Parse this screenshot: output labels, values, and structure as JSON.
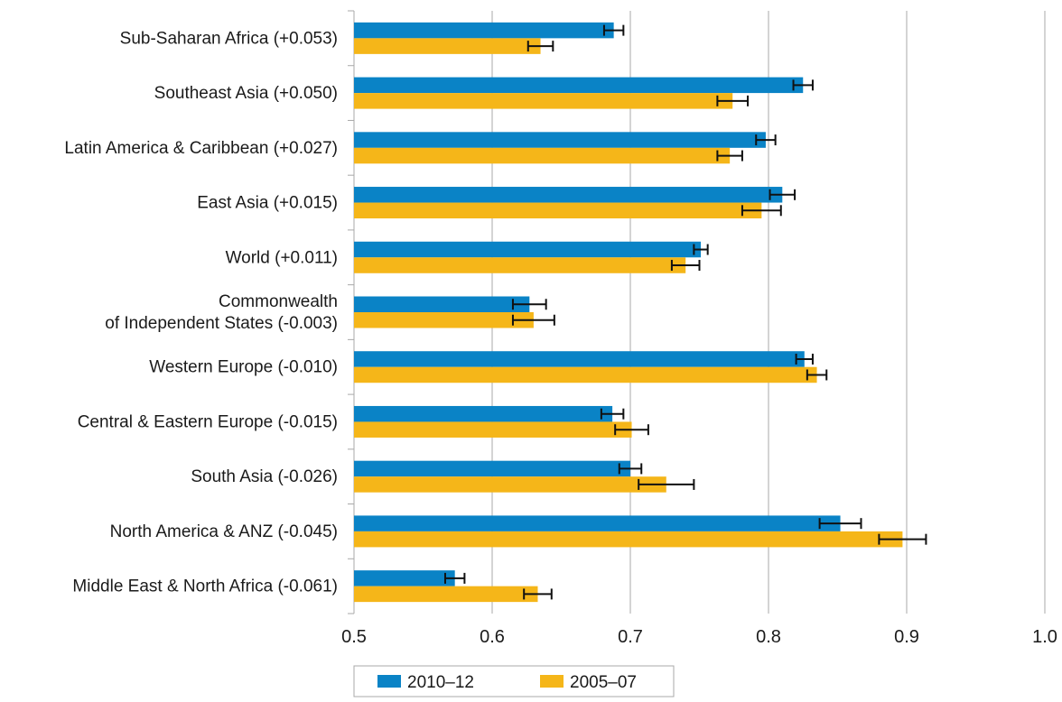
{
  "chart_data": {
    "type": "bar",
    "orientation": "horizontal",
    "categories": [
      [
        "Sub-Saharan Africa (+0.053)"
      ],
      [
        "Southeast Asia (+0.050)"
      ],
      [
        "Latin America & Caribbean (+0.027)"
      ],
      [
        "East Asia (+0.015)"
      ],
      [
        "World (+0.011)"
      ],
      [
        "Commonwealth",
        "of Independent States (-0.003)"
      ],
      [
        "Western Europe (-0.010)"
      ],
      [
        "Central & Eastern Europe (-0.015)"
      ],
      [
        "South Asia (-0.026)"
      ],
      [
        "North America & ANZ (-0.045)"
      ],
      [
        "Middle East & North Africa (-0.061)"
      ]
    ],
    "series": [
      {
        "name": "2010–12",
        "color": "#0a83c6",
        "values": [
          0.688,
          0.825,
          0.798,
          0.81,
          0.751,
          0.627,
          0.826,
          0.687,
          0.7,
          0.852,
          0.573
        ],
        "error": [
          0.007,
          0.007,
          0.007,
          0.009,
          0.005,
          0.012,
          0.006,
          0.008,
          0.008,
          0.015,
          0.007
        ]
      },
      {
        "name": "2005–07",
        "color": "#f5b619",
        "values": [
          0.635,
          0.774,
          0.772,
          0.795,
          0.74,
          0.63,
          0.835,
          0.701,
          0.726,
          0.897,
          0.633
        ],
        "error": [
          0.009,
          0.011,
          0.009,
          0.014,
          0.01,
          0.015,
          0.007,
          0.012,
          0.02,
          0.017,
          0.01
        ]
      }
    ],
    "xlim": [
      0.5,
      1.0
    ],
    "xticks": [
      "0.5",
      "0.6",
      "0.7",
      "0.8",
      "0.9",
      "1.0"
    ],
    "grid": true,
    "legend_position": "bottom"
  }
}
